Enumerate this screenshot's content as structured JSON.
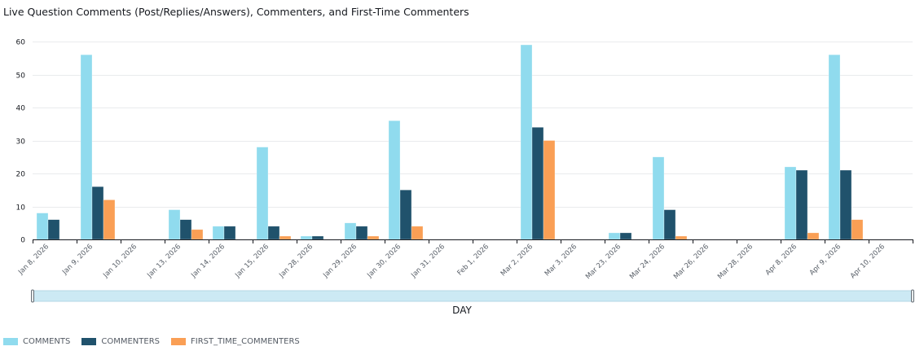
{
  "chart_data": {
    "type": "bar",
    "title": "Live  Question Comments (Post/Replies/Answers), Commenters, and First-Time Commenters",
    "xlabel": "DAY",
    "ylabel": "",
    "ylim": [
      0,
      60
    ],
    "yticks": [
      0,
      10,
      20,
      30,
      40,
      50,
      60
    ],
    "grid": true,
    "legend_position": "bottom-left",
    "categories": [
      "Jan 8, 2026",
      "Jan 9, 2026",
      "Jan 10, 2026",
      "Jan 13, 2026",
      "Jan 14, 2026",
      "Jan 15, 2026",
      "Jan 28, 2026",
      "Jan 29, 2026",
      "Jan 30, 2026",
      "Jan 31, 2026",
      "Feb 1, 2026",
      "Mar 2, 2026",
      "Mar 3, 2026",
      "Mar 23, 2026",
      "Mar 24, 2026",
      "Mar 26, 2026",
      "Mar 28, 2026",
      "Apr 8, 2026",
      "Apr 9, 2026",
      "Apr 10, 2026"
    ],
    "series": [
      {
        "name": "COMMENTS",
        "color": "#90dbee",
        "values": [
          8,
          56,
          0,
          9,
          4,
          28,
          1,
          5,
          36,
          0,
          0,
          59,
          0,
          2,
          25,
          0,
          0,
          22,
          56,
          0
        ]
      },
      {
        "name": "COMMENTERS",
        "color": "#20526c",
        "values": [
          6,
          16,
          0,
          6,
          4,
          4,
          1,
          4,
          15,
          0,
          0,
          34,
          0,
          2,
          9,
          0,
          0,
          21,
          21,
          0
        ]
      },
      {
        "name": "FIRST_TIME_COMMENTERS",
        "color": "#fa9f55",
        "values": [
          0,
          12,
          0,
          3,
          0,
          1,
          0,
          1,
          4,
          0,
          0,
          30,
          0,
          0,
          1,
          0,
          0,
          2,
          6,
          0
        ]
      }
    ]
  }
}
